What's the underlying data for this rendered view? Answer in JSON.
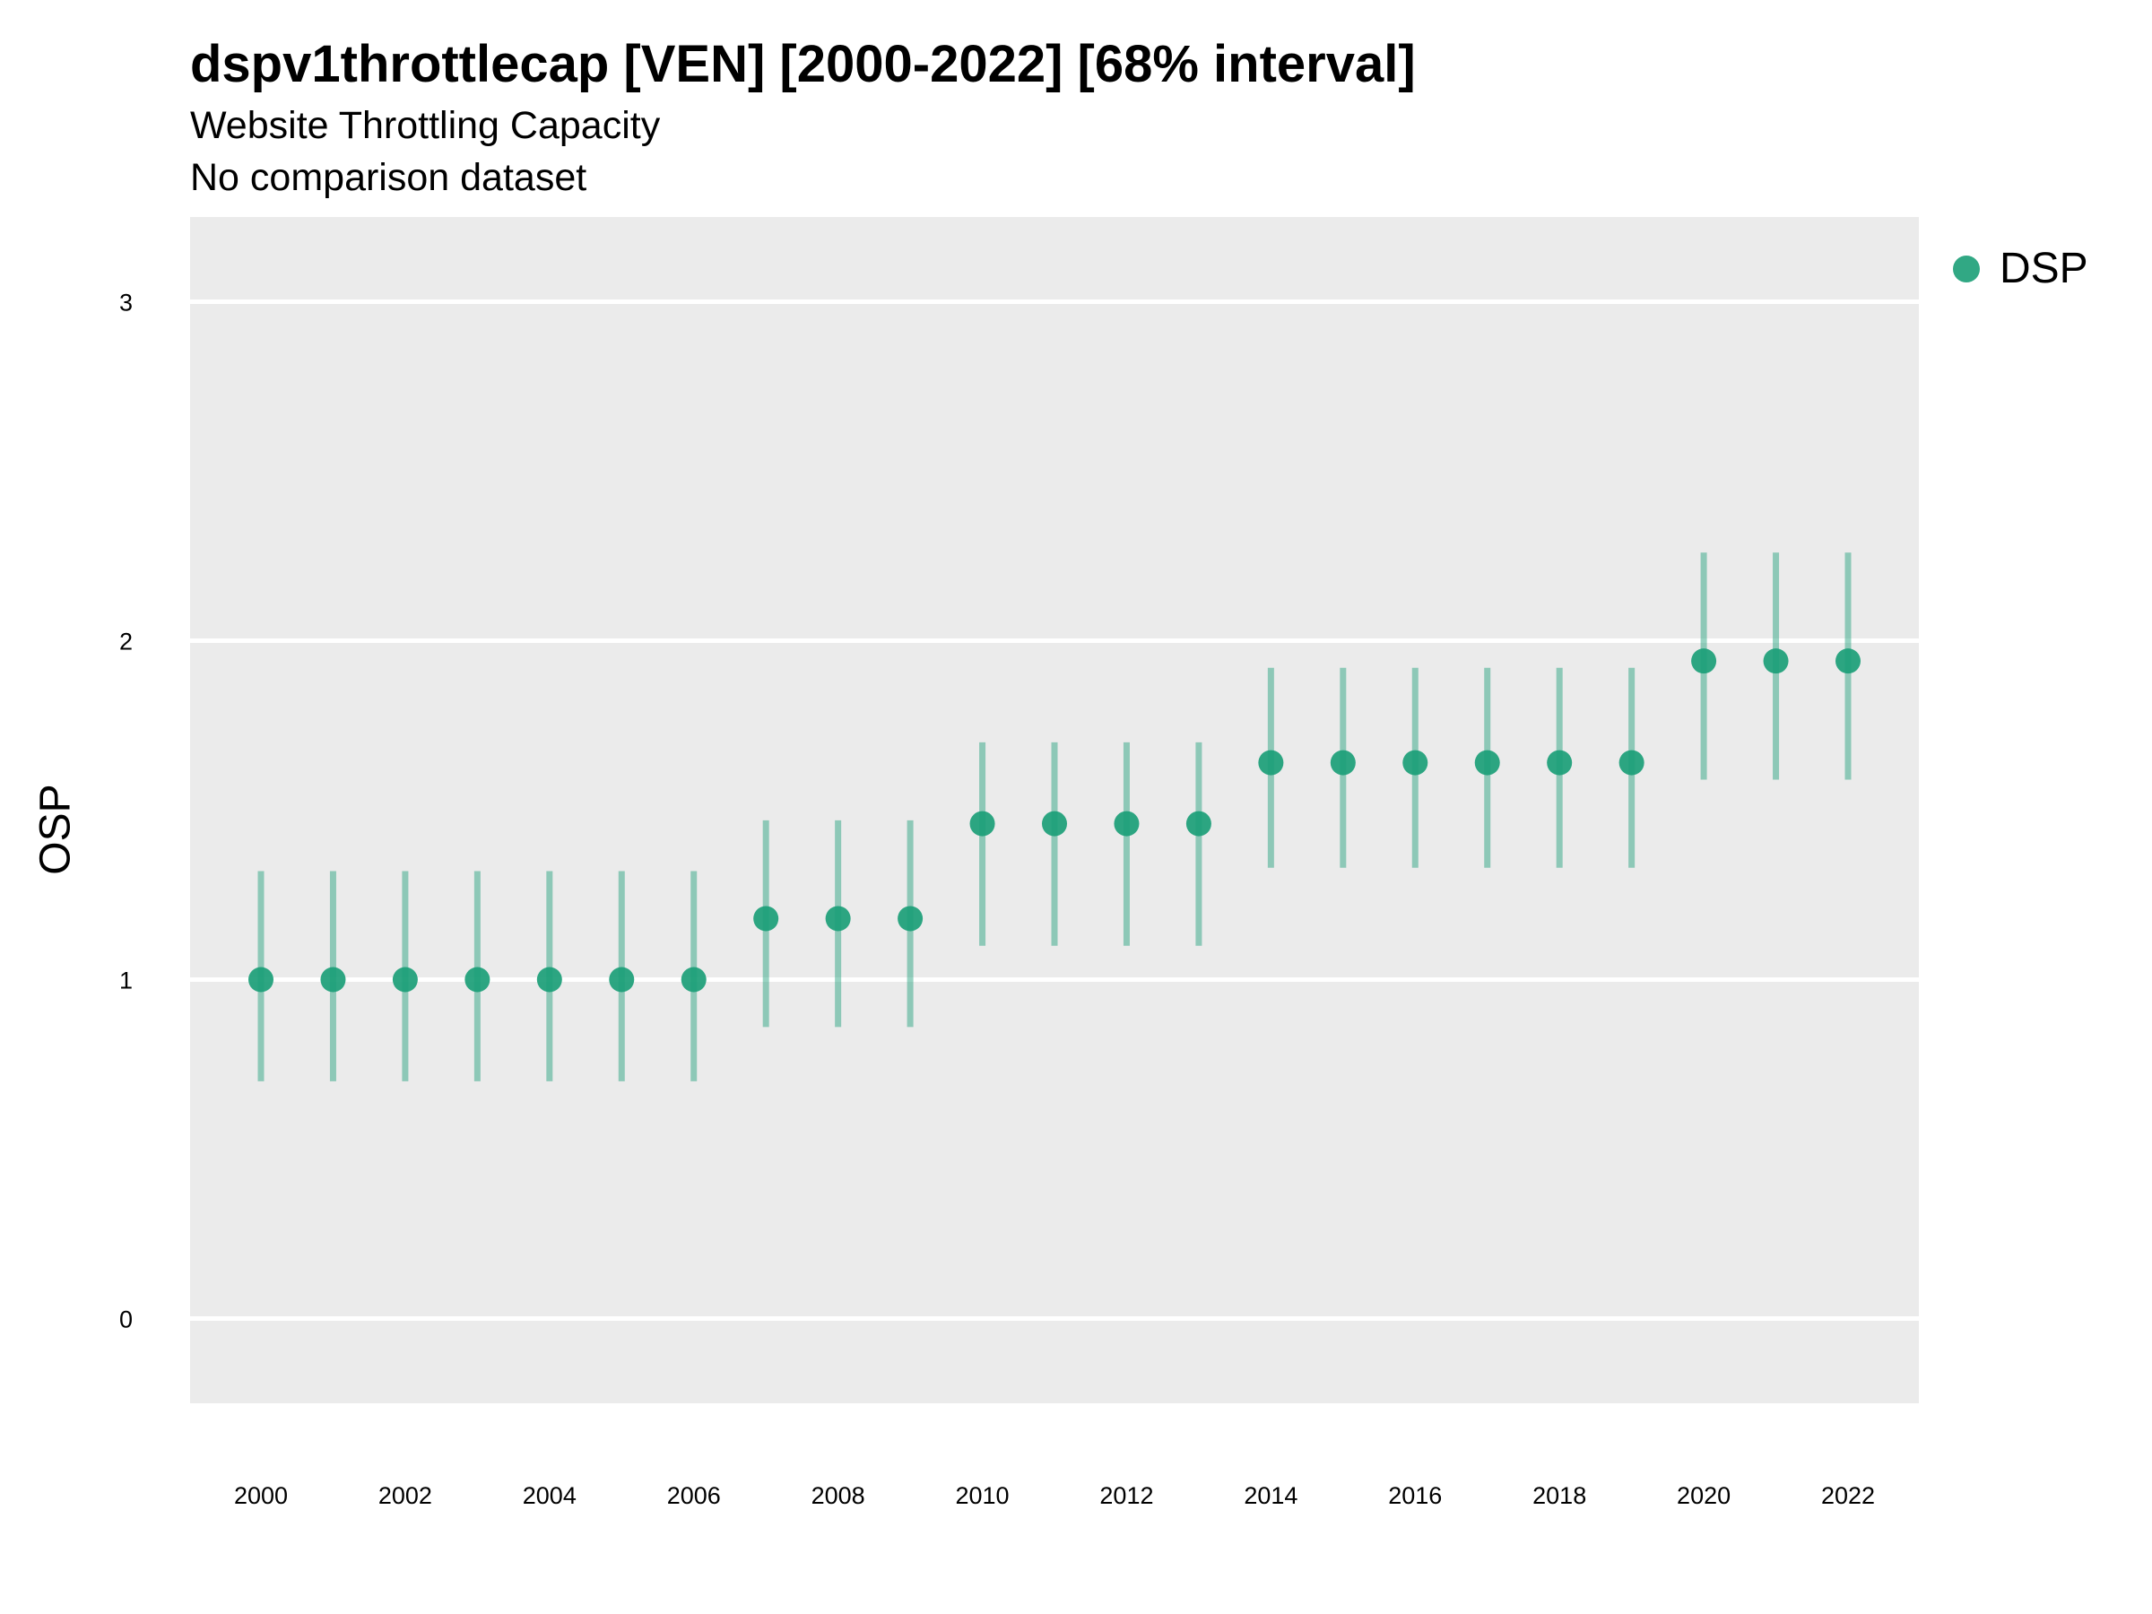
{
  "chart_data": {
    "type": "scatter",
    "title": "dspv1throttlecap [VEN] [2000-2022] [68% interval]",
    "subtitle": "Website Throttling Capacity",
    "subtitle2": "No comparison dataset",
    "xlabel": "",
    "ylabel": "OSP",
    "ylim": [
      -0.25,
      3.25
    ],
    "xlim": [
      1999,
      2023
    ],
    "y_ticks": [
      0,
      1,
      2,
      3
    ],
    "x_ticks": [
      2000,
      2002,
      2004,
      2006,
      2008,
      2010,
      2012,
      2014,
      2016,
      2018,
      2020,
      2022
    ],
    "grid": true,
    "legend_position": "right",
    "series": [
      {
        "name": "DSP",
        "color": "#1b9e77",
        "x": [
          2000,
          2001,
          2002,
          2003,
          2004,
          2005,
          2006,
          2007,
          2008,
          2009,
          2010,
          2011,
          2012,
          2013,
          2014,
          2015,
          2016,
          2017,
          2018,
          2019,
          2020,
          2021,
          2022
        ],
        "y": [
          1.0,
          1.0,
          1.0,
          1.0,
          1.0,
          1.0,
          1.0,
          1.18,
          1.18,
          1.18,
          1.46,
          1.46,
          1.46,
          1.46,
          1.64,
          1.64,
          1.64,
          1.64,
          1.64,
          1.64,
          1.94,
          1.94,
          1.94
        ],
        "lower": [
          0.7,
          0.7,
          0.7,
          0.7,
          0.7,
          0.7,
          0.7,
          0.86,
          0.86,
          0.86,
          1.1,
          1.1,
          1.1,
          1.1,
          1.33,
          1.33,
          1.33,
          1.33,
          1.33,
          1.33,
          1.59,
          1.59,
          1.59
        ],
        "upper": [
          1.32,
          1.32,
          1.32,
          1.32,
          1.32,
          1.32,
          1.32,
          1.47,
          1.47,
          1.47,
          1.7,
          1.7,
          1.7,
          1.7,
          1.92,
          1.92,
          1.92,
          1.92,
          1.92,
          1.92,
          2.26,
          2.26,
          2.26
        ]
      }
    ]
  }
}
